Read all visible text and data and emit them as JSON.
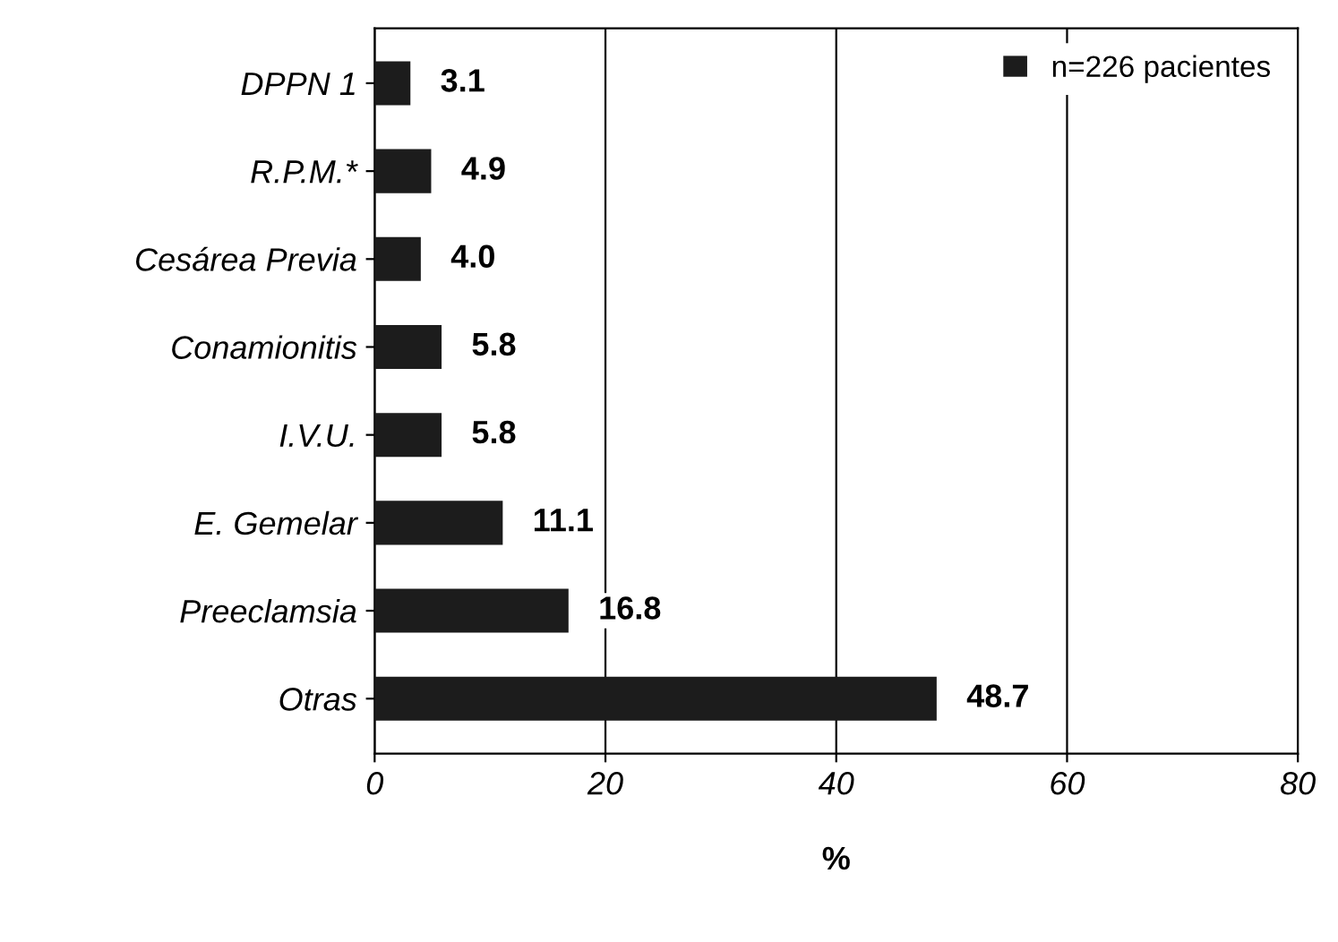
{
  "chart_data": {
    "type": "bar",
    "orientation": "horizontal",
    "xlabel": "%",
    "categories": [
      "DPPN 1",
      "R.P.M.*",
      "Cesárea Previa",
      "Conamionitis",
      "I.V.U.",
      "E. Gemelar",
      "Preeclamsia",
      "Otras"
    ],
    "series": [
      {
        "name": "n=226 pacientes",
        "color": "#1c1c1c",
        "values": [
          3.1,
          4.9,
          4.0,
          5.8,
          5.8,
          11.1,
          16.8,
          48.7
        ],
        "value_labels": [
          "3.1",
          "4.9",
          "4.0",
          "5.8",
          "5.8",
          "11.1",
          "16.8",
          "48.7"
        ]
      }
    ],
    "xlim": [
      0,
      80
    ],
    "xticks": [
      0,
      20,
      40,
      60,
      80
    ],
    "grid": "x",
    "legend": "top right"
  }
}
